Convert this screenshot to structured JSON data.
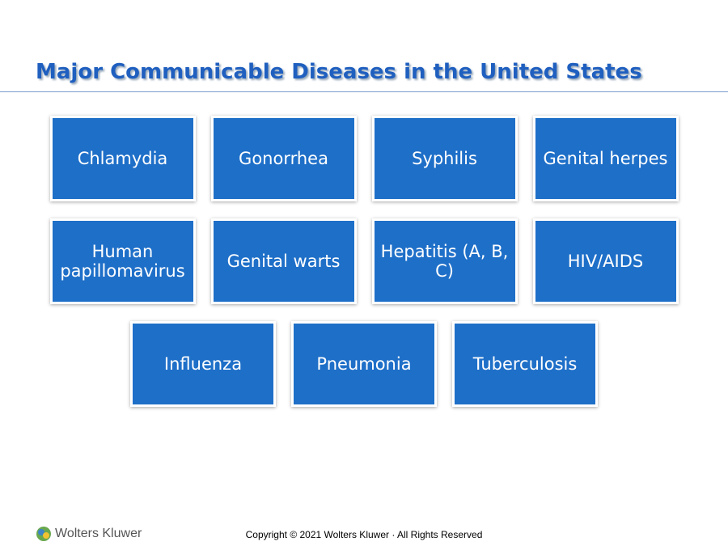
{
  "header": {
    "title": "Major Communicable Diseases in the United States"
  },
  "boxes": [
    [
      "Chlamydia",
      "Gonorrhea",
      "Syphilis",
      "Genital herpes"
    ],
    [
      "Human papillomavirus",
      "Genital warts",
      "Hepatitis (A, B, C)",
      "HIV/AIDS"
    ],
    [
      "Influenza",
      "Pneumonia",
      "Tuberculosis"
    ]
  ],
  "footer": {
    "logo": "Wolters Kluwer",
    "copyright": "Copyright © 2021 Wolters Kluwer · All Rights Reserved"
  }
}
